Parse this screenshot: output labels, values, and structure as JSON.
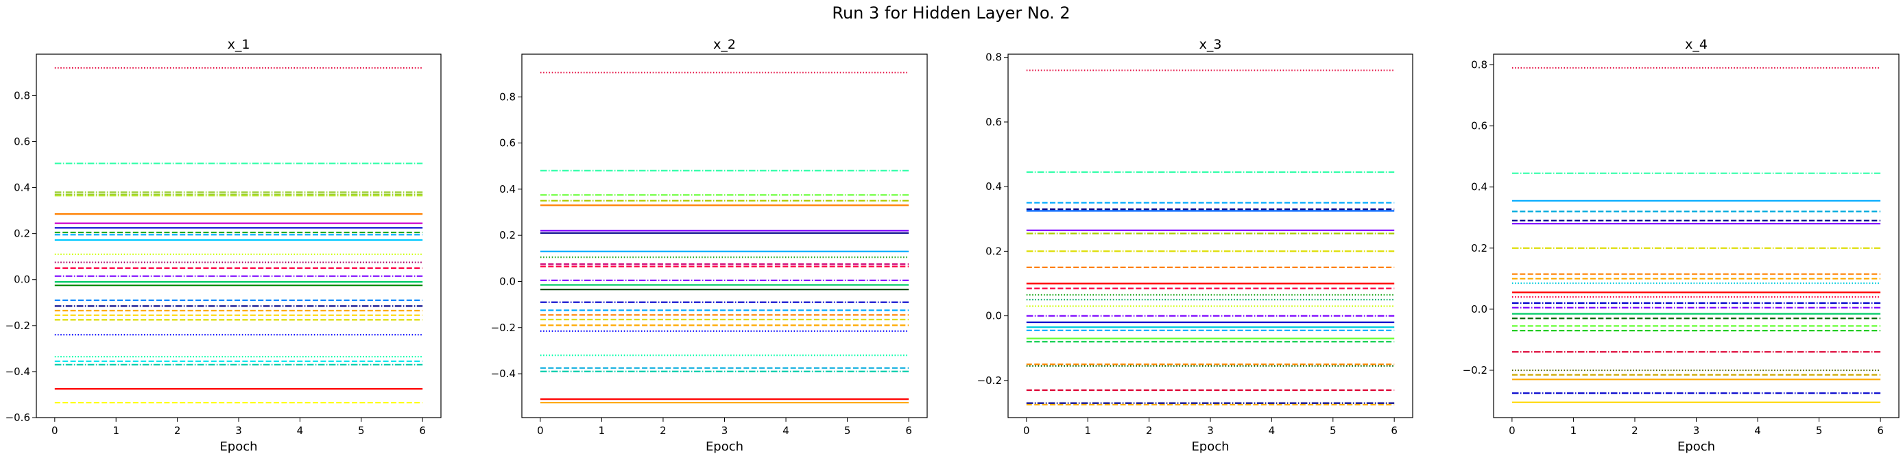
{
  "figure": {
    "title": "Run 3 for Hidden Layer No. 2"
  },
  "chart_data": [
    {
      "type": "line",
      "title": "x_1",
      "xlabel": "Epoch",
      "ylabel": "",
      "xlim": [
        -0.3,
        6.3
      ],
      "ylim": [
        -0.6,
        0.98
      ],
      "xticks": [
        0,
        1,
        2,
        3,
        4,
        5,
        6
      ],
      "yticks": [
        -0.6,
        -0.4,
        -0.2,
        0.0,
        0.2,
        0.4,
        0.6,
        0.8
      ],
      "ytick_labels": [
        "−0.6",
        "−0.4",
        "−0.2",
        "0.0",
        "0.2",
        "0.4",
        "0.6",
        "0.8"
      ],
      "x": [
        0,
        1,
        2,
        3,
        4,
        5,
        6
      ],
      "series": [
        {
          "value": 0.92,
          "color": "#e6194b",
          "style": "dotted"
        },
        {
          "value": 0.505,
          "color": "#33ffaa",
          "style": "dashdot"
        },
        {
          "value": 0.38,
          "color": "#9acd32",
          "style": "dashdot"
        },
        {
          "value": 0.37,
          "color": "#9acd32",
          "style": "dashdot"
        },
        {
          "value": 0.365,
          "color": "#b8e62e",
          "style": "dashdot"
        },
        {
          "value": 0.285,
          "color": "#ff8000",
          "style": "solid"
        },
        {
          "value": 0.245,
          "color": "#cc00cc",
          "style": "solid"
        },
        {
          "value": 0.225,
          "color": "#0000cc",
          "style": "solid"
        },
        {
          "value": 0.205,
          "color": "#22aa22",
          "style": "dashed"
        },
        {
          "value": 0.195,
          "color": "#00aaff",
          "style": "dashed"
        },
        {
          "value": 0.172,
          "color": "#00c8ff",
          "style": "solid"
        },
        {
          "value": 0.11,
          "color": "#ccff00",
          "style": "dotted"
        },
        {
          "value": 0.075,
          "color": "#aa0066",
          "style": "dotted"
        },
        {
          "value": 0.05,
          "color": "#ff0044",
          "style": "dashed"
        },
        {
          "value": 0.015,
          "color": "#7b00ff",
          "style": "dashdot"
        },
        {
          "value": -0.01,
          "color": "#00cc66",
          "style": "solid"
        },
        {
          "value": -0.025,
          "color": "#008800",
          "style": "solid"
        },
        {
          "value": -0.09,
          "color": "#0088ff",
          "style": "dashed"
        },
        {
          "value": -0.115,
          "color": "#000088",
          "style": "dashdot"
        },
        {
          "value": -0.135,
          "color": "#ffaa00",
          "style": "dashed"
        },
        {
          "value": -0.155,
          "color": "#ffd700",
          "style": "dashed"
        },
        {
          "value": -0.175,
          "color": "#dddd00",
          "style": "dashed"
        },
        {
          "value": -0.24,
          "color": "#0000ff",
          "style": "dotted"
        },
        {
          "value": -0.335,
          "color": "#00ffaa",
          "style": "dotted"
        },
        {
          "value": -0.355,
          "color": "#00e5ee",
          "style": "dashed"
        },
        {
          "value": -0.37,
          "color": "#00ccaa",
          "style": "dashdot"
        },
        {
          "value": -0.475,
          "color": "#ff0000",
          "style": "solid"
        },
        {
          "value": -0.535,
          "color": "#ffff00",
          "style": "dashed"
        }
      ]
    },
    {
      "type": "line",
      "title": "x_2",
      "xlabel": "Epoch",
      "ylabel": "",
      "xlim": [
        -0.3,
        6.3
      ],
      "ylim": [
        -0.59,
        0.985
      ],
      "xticks": [
        0,
        1,
        2,
        3,
        4,
        5,
        6
      ],
      "yticks": [
        -0.4,
        -0.2,
        0.0,
        0.2,
        0.4,
        0.6,
        0.8
      ],
      "ytick_labels": [
        "−0.4",
        "−0.2",
        "0.0",
        "0.2",
        "0.4",
        "0.6",
        "0.8"
      ],
      "x": [
        0,
        1,
        2,
        3,
        4,
        5,
        6
      ],
      "series": [
        {
          "value": 0.905,
          "color": "#e6194b",
          "style": "dotted"
        },
        {
          "value": 0.48,
          "color": "#33ffaa",
          "style": "dashdot"
        },
        {
          "value": 0.375,
          "color": "#66ff33",
          "style": "dashdot"
        },
        {
          "value": 0.35,
          "color": "#aacc00",
          "style": "dashdot"
        },
        {
          "value": 0.33,
          "color": "#ff8000",
          "style": "solid"
        },
        {
          "value": 0.22,
          "color": "#7b00ff",
          "style": "solid"
        },
        {
          "value": 0.21,
          "color": "#000088",
          "style": "solid"
        },
        {
          "value": 0.13,
          "color": "#00aaff",
          "style": "solid"
        },
        {
          "value": 0.105,
          "color": "#22aa22",
          "style": "dotted"
        },
        {
          "value": 0.075,
          "color": "#cc0077",
          "style": "dashed"
        },
        {
          "value": 0.065,
          "color": "#ff0044",
          "style": "dashed"
        },
        {
          "value": 0.005,
          "color": "#7b00ff",
          "style": "dashdot"
        },
        {
          "value": -0.015,
          "color": "#00cc66",
          "style": "solid"
        },
        {
          "value": -0.035,
          "color": "#004400",
          "style": "solid"
        },
        {
          "value": -0.09,
          "color": "#0000cc",
          "style": "dashdot"
        },
        {
          "value": -0.125,
          "color": "#00aaff",
          "style": "dashed"
        },
        {
          "value": -0.145,
          "color": "#ff8000",
          "style": "dashed"
        },
        {
          "value": -0.165,
          "color": "#dddd00",
          "style": "dashed"
        },
        {
          "value": -0.19,
          "color": "#ffaa00",
          "style": "dashed"
        },
        {
          "value": -0.215,
          "color": "#0000ff",
          "style": "dotted"
        },
        {
          "value": -0.32,
          "color": "#00ffaa",
          "style": "dotted"
        },
        {
          "value": -0.375,
          "color": "#00aadd",
          "style": "dashed"
        },
        {
          "value": -0.39,
          "color": "#00ccaa",
          "style": "dashdot"
        },
        {
          "value": -0.51,
          "color": "#ff0000",
          "style": "solid"
        },
        {
          "value": -0.525,
          "color": "#ffaa00",
          "style": "solid"
        }
      ]
    },
    {
      "type": "line",
      "title": "x_3",
      "xlabel": "Epoch",
      "ylabel": "",
      "xlim": [
        -0.3,
        6.3
      ],
      "ylim": [
        -0.315,
        0.81
      ],
      "xticks": [
        0,
        1,
        2,
        3,
        4,
        5,
        6
      ],
      "yticks": [
        -0.2,
        0.0,
        0.2,
        0.4,
        0.6,
        0.8
      ],
      "ytick_labels": [
        "−0.2",
        "0.0",
        "0.2",
        "0.4",
        "0.6",
        "0.8"
      ],
      "x": [
        0,
        1,
        2,
        3,
        4,
        5,
        6
      ],
      "series": [
        {
          "value": 0.76,
          "color": "#e6194b",
          "style": "dotted"
        },
        {
          "value": 0.445,
          "color": "#33ffaa",
          "style": "dashdot"
        },
        {
          "value": 0.35,
          "color": "#00aaff",
          "style": "dashed"
        },
        {
          "value": 0.33,
          "color": "#000088",
          "style": "dashed"
        },
        {
          "value": 0.325,
          "color": "#0066ff",
          "style": "solid"
        },
        {
          "value": 0.265,
          "color": "#7b00ff",
          "style": "solid"
        },
        {
          "value": 0.255,
          "color": "#aacc00",
          "style": "dashdot"
        },
        {
          "value": 0.2,
          "color": "#dddd00",
          "style": "dashdot"
        },
        {
          "value": 0.15,
          "color": "#ff8000",
          "style": "dashed"
        },
        {
          "value": 0.1,
          "color": "#ff0000",
          "style": "solid"
        },
        {
          "value": 0.085,
          "color": "#ff0044",
          "style": "dashed"
        },
        {
          "value": 0.065,
          "color": "#22aa22",
          "style": "dotted"
        },
        {
          "value": 0.05,
          "color": "#00aa66",
          "style": "dotted"
        },
        {
          "value": 0.03,
          "color": "#ccff00",
          "style": "dotted"
        },
        {
          "value": 0.0,
          "color": "#7b00ff",
          "style": "dashdot"
        },
        {
          "value": -0.02,
          "color": "#0000cc",
          "style": "solid"
        },
        {
          "value": -0.035,
          "color": "#00ccdd",
          "style": "solid"
        },
        {
          "value": -0.045,
          "color": "#00aaff",
          "style": "dashed"
        },
        {
          "value": -0.07,
          "color": "#66ff33",
          "style": "solid"
        },
        {
          "value": -0.08,
          "color": "#00cc44",
          "style": "dashed"
        },
        {
          "value": -0.15,
          "color": "#ff8800",
          "style": "dashed"
        },
        {
          "value": -0.155,
          "color": "#006600",
          "style": "dotted"
        },
        {
          "value": -0.23,
          "color": "#dd0033",
          "style": "dashed"
        },
        {
          "value": -0.27,
          "color": "#000088",
          "style": "dashdot"
        },
        {
          "value": -0.275,
          "color": "#ffaa00",
          "style": "dashed"
        }
      ]
    },
    {
      "type": "line",
      "title": "x_4",
      "xlabel": "Epoch",
      "ylabel": "",
      "xlim": [
        -0.3,
        6.3
      ],
      "ylim": [
        -0.355,
        0.835
      ],
      "xticks": [
        0,
        1,
        2,
        3,
        4,
        5,
        6
      ],
      "yticks": [
        -0.2,
        0.0,
        0.2,
        0.4,
        0.6,
        0.8
      ],
      "ytick_labels": [
        "−0.2",
        "0.0",
        "0.2",
        "0.4",
        "0.6",
        "0.8"
      ],
      "x": [
        0,
        1,
        2,
        3,
        4,
        5,
        6
      ],
      "series": [
        {
          "value": 0.79,
          "color": "#e6194b",
          "style": "dotted"
        },
        {
          "value": 0.445,
          "color": "#33ffaa",
          "style": "dashdot"
        },
        {
          "value": 0.355,
          "color": "#00aaff",
          "style": "solid"
        },
        {
          "value": 0.32,
          "color": "#00aadd",
          "style": "dashed"
        },
        {
          "value": 0.29,
          "color": "#000088",
          "style": "dashed"
        },
        {
          "value": 0.28,
          "color": "#7b00ff",
          "style": "solid"
        },
        {
          "value": 0.2,
          "color": "#dddd00",
          "style": "dashdot"
        },
        {
          "value": 0.115,
          "color": "#ff8000",
          "style": "dashed"
        },
        {
          "value": 0.1,
          "color": "#ffaa00",
          "style": "dashed"
        },
        {
          "value": 0.085,
          "color": "#00ccdd",
          "style": "dotted"
        },
        {
          "value": 0.055,
          "color": "#ff0000",
          "style": "solid"
        },
        {
          "value": 0.04,
          "color": "#ff0044",
          "style": "dotted"
        },
        {
          "value": 0.02,
          "color": "#0000cc",
          "style": "dashdot"
        },
        {
          "value": 0.005,
          "color": "#7b00ff",
          "style": "dashdot"
        },
        {
          "value": -0.015,
          "color": "#00cc66",
          "style": "solid"
        },
        {
          "value": -0.03,
          "color": "#006600",
          "style": "dashed"
        },
        {
          "value": -0.055,
          "color": "#66ff33",
          "style": "dashed"
        },
        {
          "value": -0.07,
          "color": "#22cc22",
          "style": "dashed"
        },
        {
          "value": -0.14,
          "color": "#dd0033",
          "style": "dashdot"
        },
        {
          "value": -0.2,
          "color": "#556600",
          "style": "dotted"
        },
        {
          "value": -0.215,
          "color": "#ccaa00",
          "style": "dashed"
        },
        {
          "value": -0.23,
          "color": "#ffaa00",
          "style": "solid"
        },
        {
          "value": -0.275,
          "color": "#0000cc",
          "style": "dashdot"
        },
        {
          "value": -0.305,
          "color": "#ffd700",
          "style": "solid"
        }
      ]
    }
  ]
}
